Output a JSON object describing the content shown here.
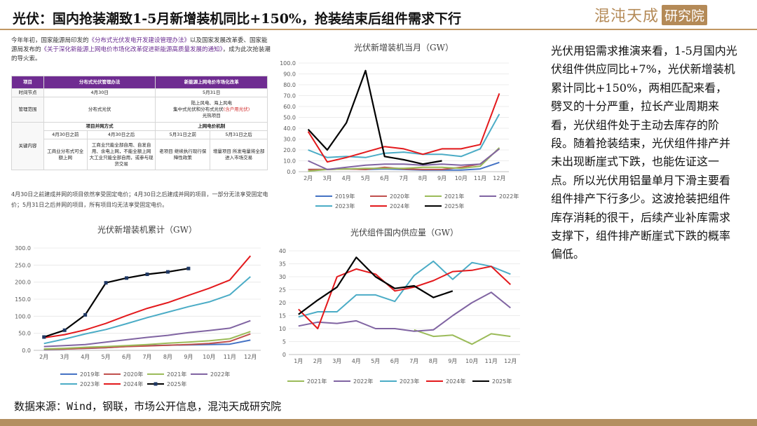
{
  "header": {
    "title": "光伏：国内抢装潮致1-5月新增装机同比+150%，抢装结束后组件需求下行",
    "logo_left": "混沌天成",
    "logo_right": "研究院"
  },
  "intro": {
    "part1": "今年年初，国家能源局印发的",
    "link1": "《分布式光伏发电开发建设管理办法》",
    "part2": "以及国家发展改革委、国家能源局发布的",
    "link2": "《关于深化新能源上网电价市场化改革促进新能源高质量发展的通知》",
    "part3": "，成为此次抢装潮的导火索。"
  },
  "policy_table": {
    "header_col0": "项目",
    "header_col1": "分布式光伏管理办法",
    "header_col2": "新能源上网电价市场化改革",
    "row_time_label": "时间节点",
    "row_time_1": "4月30日",
    "row_time_2": "5月31日",
    "row_scope_label": "管理范围",
    "row_scope_1": "分布式光伏",
    "row_scope_2a": "陆上风电、海上风电",
    "row_scope_2b": "集中式光伏和分布式光伏",
    "row_scope_2c": "(含户用光伏)",
    "row_scope_2d": "光热项目",
    "row_key_label": "关键内容",
    "sub1": "项目并网方式",
    "sub2": "上网电价机制",
    "before1": "4月30日之前",
    "after1": "4月30日之后",
    "before2": "5月31日之前",
    "after2": "5月31日之后",
    "c1": "工商业分布式可全额上网",
    "c2": "工商业只能全部自用、自发自用、余电上网，不能全额上网 大工业只能全部自用，或参与现货交易",
    "c3": "老项目 继续执行现行保障性政策",
    "c4": "增量项目 所发电量将全部进入市场交易"
  },
  "note": "4月30日之前建成并网的项目依然享受固定电价；4月30日之后建成并网的项目，一部分无法享受固定电价；5月31日之后并网的项目，所有项目均无法享受固定电价。",
  "colors": {
    "y2019": "#4472c4",
    "y2020": "#c0504d",
    "y2021": "#9bbb59",
    "y2022": "#8064a2",
    "y2023": "#4bacc6",
    "y2024": "#e3191c",
    "y2025": "#000000",
    "brand": "#b48a57",
    "purple": "#6f2c91"
  },
  "chart_data": [
    {
      "type": "line",
      "title": "光伏新增装机当月（GW）",
      "categories": [
        "2月",
        "3月",
        "4月",
        "5月",
        "6月",
        "7月",
        "8月",
        "9月",
        "10月",
        "11月",
        "12月"
      ],
      "ylim": [
        0,
        100
      ],
      "yticks": [
        "0.0",
        "10.0",
        "20.0",
        "30.0",
        "40.0",
        "50.0",
        "60.0",
        "70.0",
        "80.0",
        "90.0",
        "100.0"
      ],
      "series": [
        {
          "name": "2019年",
          "values": [
            2,
            2,
            2.5,
            2,
            2.5,
            2,
            1.5,
            1.5,
            1.5,
            2.5,
            8.5
          ]
        },
        {
          "name": "2020年",
          "values": [
            2,
            2,
            2.5,
            2,
            4,
            2.5,
            2,
            2,
            4,
            7,
            21
          ]
        },
        {
          "name": "2021年",
          "values": [
            0.5,
            2,
            2.5,
            3,
            3,
            3,
            4,
            4,
            3,
            5,
            22
          ]
        },
        {
          "name": "2022年",
          "values": [
            10,
            2,
            4,
            6,
            7,
            7,
            6,
            7,
            6,
            7,
            21
          ]
        },
        {
          "name": "2023年",
          "values": [
            20,
            13,
            14,
            13,
            17,
            18,
            16,
            16,
            14,
            21,
            53
          ]
        },
        {
          "name": "2024年",
          "values": [
            37,
            9,
            13,
            18,
            23,
            21,
            16,
            21,
            21,
            25,
            72
          ]
        },
        {
          "name": "2025年",
          "values": [
            39,
            20,
            45,
            93,
            14,
            11,
            7,
            10,
            null,
            null,
            null
          ]
        }
      ]
    },
    {
      "type": "line",
      "title": "光伏新增装机累计（GW）",
      "categories": [
        "2月",
        "3月",
        "4月",
        "5月",
        "6月",
        "7月",
        "8月",
        "9月",
        "10月",
        "11月",
        "12月"
      ],
      "ylim": [
        0,
        300
      ],
      "yticks": [
        "0.0",
        "50.0",
        "100.0",
        "150.0",
        "200.0",
        "250.0",
        "300.0"
      ],
      "series": [
        {
          "name": "2019年",
          "values": [
            2,
            4,
            5.5,
            7.5,
            11.5,
            14,
            15,
            16,
            17,
            18,
            30
          ]
        },
        {
          "name": "2020年",
          "values": [
            3,
            4,
            6,
            8,
            11,
            13,
            15,
            17,
            20,
            26,
            48
          ]
        },
        {
          "name": "2021年",
          "values": [
            4,
            6,
            9,
            11,
            14,
            17,
            21,
            24,
            28,
            34,
            55
          ]
        },
        {
          "name": "2022年",
          "values": [
            11,
            14,
            17,
            24,
            31,
            38,
            44,
            52,
            58,
            65,
            87
          ]
        },
        {
          "name": "2023年",
          "values": [
            20,
            33,
            48,
            61,
            78,
            96,
            112,
            128,
            142,
            163,
            216
          ]
        },
        {
          "name": "2024年",
          "values": [
            37,
            46,
            60,
            79,
            102,
            123,
            140,
            161,
            182,
            206,
            277
          ]
        },
        {
          "name": "2025年",
          "values": [
            39,
            59,
            104,
            198,
            212,
            223,
            230,
            240,
            null,
            null,
            null
          ]
        }
      ]
    },
    {
      "type": "line",
      "title": "光伏组件国内供应量（GW）",
      "categories": [
        "1月",
        "2月",
        "3月",
        "4月",
        "5月",
        "6月",
        "7月",
        "8月",
        "9月",
        "10月",
        "11月",
        "12月"
      ],
      "ylim": [
        0,
        40
      ],
      "yticks": [
        "0",
        "5",
        "10",
        "15",
        "20",
        "25",
        "30",
        "35",
        "40"
      ],
      "series": [
        {
          "name": "2021年",
          "values": [
            null,
            null,
            null,
            null,
            null,
            null,
            9.5,
            7,
            7.5,
            4,
            8,
            7
          ]
        },
        {
          "name": "2022年",
          "values": [
            11,
            12.5,
            12,
            13,
            10,
            10,
            9,
            9.5,
            15,
            20,
            24,
            18
          ]
        },
        {
          "name": "2023年",
          "values": [
            14.5,
            16.5,
            16.5,
            23,
            23,
            20.5,
            30.5,
            36,
            29,
            35.5,
            34,
            31
          ]
        },
        {
          "name": "2024年",
          "values": [
            17.5,
            10,
            30,
            33,
            31,
            24.5,
            26,
            28.5,
            32,
            32.5,
            34,
            27
          ]
        },
        {
          "name": "2025年",
          "values": [
            15.5,
            21,
            26,
            37.5,
            30,
            25.5,
            26.5,
            22,
            24.5,
            null,
            null,
            null
          ]
        }
      ]
    }
  ],
  "analysis": "光伏用铝需求推演来看，1-5月国内光伏组件供应同比+7%，光伏新增装机累计同比+150%，两相匹配来看，劈叉的十分严重，拉长产业周期来看，光伏组件处于主动去库存的阶段。随着抢装结束，光伏组件排产并未出现断崖式下跌，也能佐证这一点。所以光伏用铝量单月下滑主要看组件排产下行多少。这波抢装把组件库存消耗的很干，后续产业补库需求支撑下，组件排产断崖式下跌的概率偏低。",
  "source": "数据来源：Wind，钢联，市场公开信息，混沌天成研究院"
}
